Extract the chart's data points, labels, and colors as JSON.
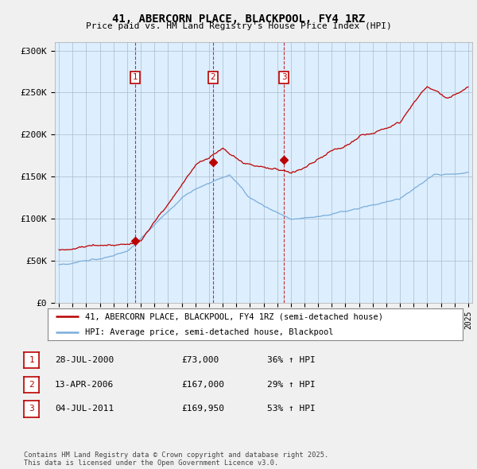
{
  "title": "41, ABERCORN PLACE, BLACKPOOL, FY4 1RZ",
  "subtitle": "Price paid vs. HM Land Registry's House Price Index (HPI)",
  "ylim": [
    0,
    310000
  ],
  "yticks": [
    0,
    50000,
    100000,
    150000,
    200000,
    250000,
    300000
  ],
  "ytick_labels": [
    "£0",
    "£50K",
    "£100K",
    "£150K",
    "£200K",
    "£250K",
    "£300K"
  ],
  "line1_color": "#bb0000",
  "line2_color": "#7aadda",
  "transaction_color": "#bb0000",
  "transactions": [
    {
      "date_num": 2000.57,
      "price": 73000,
      "label": "1"
    },
    {
      "date_num": 2006.28,
      "price": 167000,
      "label": "2"
    },
    {
      "date_num": 2011.5,
      "price": 169950,
      "label": "3"
    }
  ],
  "legend_entries": [
    "41, ABERCORN PLACE, BLACKPOOL, FY4 1RZ (semi-detached house)",
    "HPI: Average price, semi-detached house, Blackpool"
  ],
  "table_rows": [
    [
      "1",
      "28-JUL-2000",
      "£73,000",
      "36% ↑ HPI"
    ],
    [
      "2",
      "13-APR-2006",
      "£167,000",
      "29% ↑ HPI"
    ],
    [
      "3",
      "04-JUL-2011",
      "£169,950",
      "53% ↑ HPI"
    ]
  ],
  "footer": "Contains HM Land Registry data © Crown copyright and database right 2025.\nThis data is licensed under the Open Government Licence v3.0.",
  "background_color": "#f0f0f0",
  "plot_background": "#ddeeff",
  "grid_color": "#aabbcc"
}
